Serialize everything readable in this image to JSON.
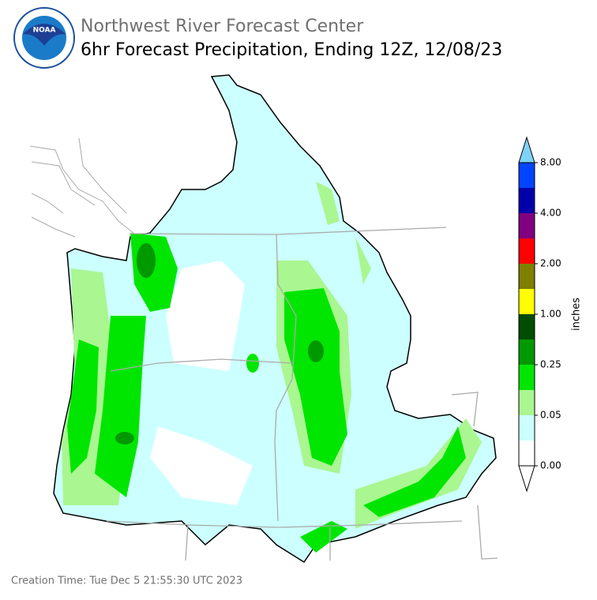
{
  "header": {
    "agency": "Northwest River Forecast Center",
    "title": "6hr Forecast Precipitation, Ending 12Z, 12/08/23"
  },
  "legend": {
    "label": "inches",
    "colors": [
      "#ffffff",
      "#ccffff",
      "#aaf691",
      "#00e600",
      "#009900",
      "#004c00",
      "#ffff00",
      "#7f7f00",
      "#ff0000",
      "#800080",
      "#0000aa",
      "#0044ff"
    ],
    "over_color": "#7fd2f8",
    "under_color": "#ffffff",
    "ticks": [
      {
        "value": 0,
        "label": "0.00"
      },
      {
        "value": 0.05,
        "label": "0.05"
      },
      {
        "value": 0.25,
        "label": "0.25"
      },
      {
        "value": 1,
        "label": "1.00"
      },
      {
        "value": 2,
        "label": "2.00"
      },
      {
        "value": 4,
        "label": "4.00"
      },
      {
        "value": 8,
        "label": "8.00"
      }
    ]
  },
  "footer": {
    "creation": "Creation Time: Tue Dec 5 21:55:30 UTC 2023"
  }
}
